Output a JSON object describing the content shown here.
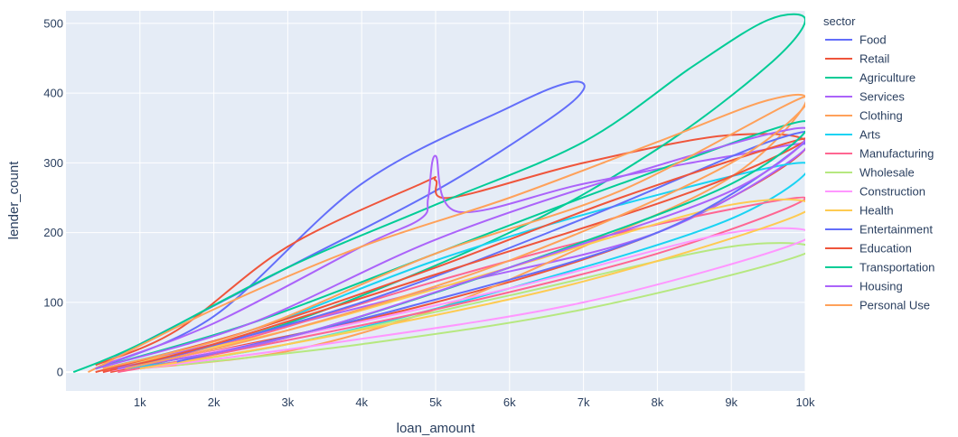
{
  "chart_data": {
    "type": "line",
    "title": "",
    "xlabel": "loan_amount",
    "ylabel": "lender_count",
    "xlim": [
      0,
      10000
    ],
    "ylim": [
      -27,
      518
    ],
    "x_ticks": [
      1000,
      2000,
      3000,
      4000,
      5000,
      6000,
      7000,
      8000,
      9000,
      10000
    ],
    "x_tick_labels": [
      "1k",
      "2k",
      "3k",
      "4k",
      "5k",
      "6k",
      "7k",
      "8k",
      "9k",
      "10k"
    ],
    "y_ticks": [
      0,
      100,
      200,
      300,
      400,
      500
    ],
    "y_tick_labels": [
      "0",
      "100",
      "200",
      "300",
      "400",
      "500"
    ],
    "legend_title": "sector",
    "legend_position": "right",
    "line_shape": "spline",
    "series": [
      {
        "name": "Food",
        "color": "#636efa",
        "x": [
          400,
          2000,
          4000,
          6000,
          6800,
          7000,
          6500,
          5000,
          3000,
          1000,
          500
        ],
        "y": [
          5,
          80,
          270,
          380,
          415,
          405,
          360,
          260,
          150,
          40,
          10
        ]
      },
      {
        "name": "Retail",
        "color": "#EF553B",
        "x": [
          400,
          1500,
          3000,
          4800,
          5000,
          5200,
          7000,
          9000,
          10000,
          8000,
          5000,
          2000,
          600
        ],
        "y": [
          10,
          60,
          180,
          270,
          275,
          250,
          300,
          340,
          320,
          200,
          100,
          30,
          0
        ]
      },
      {
        "name": "Agriculture",
        "color": "#00cc96",
        "x": [
          100,
          1000,
          3000,
          5000,
          7000,
          8500,
          9500,
          10000,
          9500,
          8000,
          6000,
          3000,
          800
        ],
        "y": [
          0,
          40,
          150,
          240,
          330,
          440,
          505,
          505,
          440,
          320,
          200,
          70,
          10
        ]
      },
      {
        "name": "Services",
        "color": "#ab63fa",
        "x": [
          500,
          2000,
          4000,
          4800,
          4900,
          5000,
          5300,
          7000,
          9000,
          10000,
          8000,
          5000,
          2000,
          600
        ],
        "y": [
          10,
          70,
          180,
          220,
          250,
          310,
          230,
          270,
          310,
          320,
          200,
          120,
          40,
          5
        ]
      },
      {
        "name": "Clothing",
        "color": "#FFA15A",
        "x": [
          300,
          2000,
          4000,
          6000,
          8000,
          9500,
          10000,
          9000,
          7000,
          5000,
          3000,
          1000
        ],
        "y": [
          0,
          90,
          180,
          250,
          330,
          390,
          385,
          280,
          180,
          90,
          30,
          5
        ]
      },
      {
        "name": "Arts",
        "color": "#19d3f3",
        "x": [
          500,
          2500,
          5000,
          7500,
          10000,
          9000,
          6000,
          3000,
          800
        ],
        "y": [
          5,
          60,
          160,
          240,
          300,
          220,
          120,
          40,
          5
        ]
      },
      {
        "name": "Manufacturing",
        "color": "#FF6692",
        "x": [
          500,
          2500,
          5000,
          7500,
          10000,
          8000,
          5000,
          2000,
          700
        ],
        "y": [
          0,
          50,
          130,
          200,
          250,
          170,
          90,
          25,
          0
        ]
      },
      {
        "name": "Wholesale",
        "color": "#B6E880",
        "x": [
          1000,
          3000,
          6000,
          9000,
          10000,
          7000,
          4000,
          1500
        ],
        "y": [
          5,
          40,
          110,
          180,
          170,
          90,
          40,
          10
        ]
      },
      {
        "name": "Construction",
        "color": "#FF97FF",
        "x": [
          500,
          3000,
          6000,
          9000,
          10000,
          7000,
          3500,
          1000
        ],
        "y": [
          0,
          50,
          120,
          200,
          190,
          100,
          40,
          5
        ]
      },
      {
        "name": "Health",
        "color": "#FECB52",
        "x": [
          500,
          3000,
          6000,
          9000,
          10000,
          7000,
          3500,
          1000
        ],
        "y": [
          5,
          60,
          150,
          240,
          230,
          130,
          50,
          5
        ]
      },
      {
        "name": "Entertainment",
        "color": "#636efa",
        "x": [
          1000,
          4000,
          7000,
          9500,
          10000,
          8000,
          4500,
          1500
        ],
        "y": [
          10,
          100,
          220,
          330,
          330,
          200,
          90,
          15
        ]
      },
      {
        "name": "Education",
        "color": "#EF553B",
        "x": [
          400,
          2500,
          5000,
          7500,
          10000,
          8500,
          5000,
          2000,
          500
        ],
        "y": [
          0,
          60,
          150,
          250,
          335,
          260,
          140,
          40,
          0
        ]
      },
      {
        "name": "Transportation",
        "color": "#00cc96",
        "x": [
          400,
          2500,
          5000,
          7500,
          10000,
          9000,
          6000,
          3000,
          700
        ],
        "y": [
          5,
          70,
          170,
          270,
          360,
          270,
          150,
          50,
          5
        ]
      },
      {
        "name": "Housing",
        "color": "#ab63fa",
        "x": [
          400,
          2500,
          5000,
          7500,
          10000,
          9000,
          6000,
          3000,
          700
        ],
        "y": [
          5,
          70,
          190,
          280,
          350,
          260,
          150,
          50,
          5
        ]
      },
      {
        "name": "Personal Use",
        "color": "#FFA15A",
        "x": [
          500,
          2500,
          5000,
          7500,
          10000,
          9000,
          6000,
          3000,
          800
        ],
        "y": [
          5,
          60,
          170,
          260,
          395,
          300,
          160,
          60,
          5
        ]
      }
    ]
  }
}
